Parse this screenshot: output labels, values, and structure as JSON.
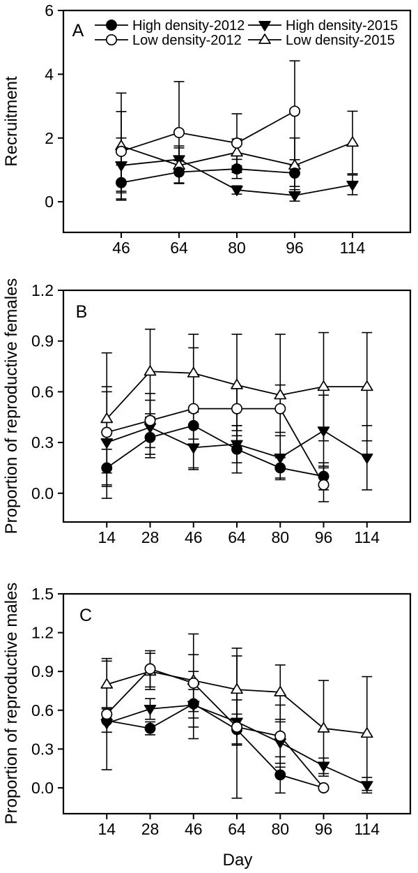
{
  "figure": {
    "xlabel": "Day",
    "background": "#ffffff",
    "ink": "#000000",
    "legend": [
      {
        "label": "High density-2012",
        "marker": "circle-filled"
      },
      {
        "label": "Low density-2012",
        "marker": "circle-open"
      },
      {
        "label": "High density-2015",
        "marker": "triangle-down-filled"
      },
      {
        "label": "Low density-2015",
        "marker": "triangle-up-open"
      }
    ]
  },
  "chart_data": [
    {
      "type": "line",
      "panel_label": "A",
      "ylabel": "Recruitment",
      "categories": [
        "46",
        "64",
        "80",
        "96",
        "114"
      ],
      "ylim": [
        -0.96,
        6.0
      ],
      "yticks": [
        0,
        2,
        4,
        6
      ],
      "ytick_labels": [
        "0",
        "2",
        "4",
        "6"
      ],
      "grid": false,
      "legend_position": "top-left-inside",
      "series": [
        {
          "name": "High density-2012",
          "marker": "circle-filled",
          "values": [
            0.6,
            0.93,
            1.03,
            0.9,
            null
          ],
          "err_lo": [
            0.05,
            0.59,
            0.73,
            0.48,
            null
          ],
          "err_hi": [
            1.15,
            1.29,
            1.33,
            1.32,
            null
          ]
        },
        {
          "name": "Low density-2012",
          "marker": "circle-open",
          "values": [
            1.58,
            2.17,
            1.84,
            2.84,
            null
          ],
          "err_lo": [
            0.33,
            0.57,
            0.92,
            1.14,
            null
          ],
          "err_hi": [
            2.83,
            3.77,
            2.76,
            4.42,
            null
          ]
        },
        {
          "name": "High density-2015",
          "marker": "triangle-down-filled",
          "values": [
            1.14,
            1.33,
            0.37,
            0.2,
            0.53
          ],
          "err_lo": [
            0.28,
            0.91,
            0.24,
            0.02,
            0.22
          ],
          "err_hi": [
            2.0,
            1.75,
            0.5,
            0.38,
            0.84
          ]
        },
        {
          "name": "Low density-2015",
          "marker": "triangle-up-open",
          "values": [
            1.75,
            1.14,
            1.55,
            1.14,
            1.86
          ],
          "err_lo": [
            0.09,
            0.59,
            1.13,
            0.28,
            0.88
          ],
          "err_hi": [
            3.41,
            1.69,
            1.97,
            2.0,
            2.84
          ]
        }
      ]
    },
    {
      "type": "line",
      "panel_label": "B",
      "ylabel": "Proportion of reproductive females",
      "categories": [
        "14",
        "28",
        "46",
        "64",
        "80",
        "96",
        "114"
      ],
      "ylim": [
        -0.17,
        1.2
      ],
      "yticks": [
        0.0,
        0.3,
        0.6,
        0.9,
        1.2
      ],
      "ytick_labels": [
        "0.0",
        "0.3",
        "0.6",
        "0.9",
        "1.2"
      ],
      "grid": false,
      "legend_position": "none",
      "series": [
        {
          "name": "High density-2012",
          "marker": "circle-filled",
          "values": [
            0.15,
            0.33,
            0.4,
            0.26,
            0.15,
            0.1,
            null
          ],
          "err_lo": [
            0.04,
            0.21,
            0.32,
            0.12,
            0.09,
            0.02,
            null
          ],
          "err_hi": [
            0.26,
            0.45,
            0.48,
            0.4,
            0.21,
            0.18,
            null
          ]
        },
        {
          "name": "Low density-2012",
          "marker": "circle-open",
          "values": [
            0.36,
            0.43,
            0.5,
            0.5,
            0.5,
            0.05,
            null
          ],
          "err_lo": [
            0.12,
            0.27,
            0.14,
            0.37,
            0.36,
            -0.05,
            null
          ],
          "err_hi": [
            0.6,
            0.59,
            0.86,
            0.63,
            0.64,
            0.15,
            null
          ]
        },
        {
          "name": "High density-2015",
          "marker": "triangle-down-filled",
          "values": [
            0.3,
            0.39,
            0.27,
            0.29,
            0.21,
            0.37,
            0.21
          ],
          "err_lo": [
            -0.03,
            0.23,
            0.15,
            0.18,
            0.08,
            0.16,
            0.02
          ],
          "err_hi": [
            0.63,
            0.55,
            0.39,
            0.4,
            0.34,
            0.58,
            0.4
          ]
        },
        {
          "name": "Low density-2015",
          "marker": "triangle-up-open",
          "values": [
            0.44,
            0.72,
            0.71,
            0.64,
            0.58,
            0.63,
            0.63
          ],
          "err_lo": [
            0.05,
            0.47,
            0.48,
            0.34,
            0.22,
            0.31,
            0.31
          ],
          "err_hi": [
            0.83,
            0.97,
            0.94,
            0.94,
            0.94,
            0.95,
            0.95
          ]
        }
      ]
    },
    {
      "type": "line",
      "panel_label": "C",
      "ylabel": "Proportion of reproductive males",
      "categories": [
        "14",
        "28",
        "46",
        "64",
        "80",
        "96",
        "114"
      ],
      "ylim": [
        -0.2,
        1.5
      ],
      "yticks": [
        0.0,
        0.3,
        0.6,
        0.9,
        1.2,
        1.5
      ],
      "ytick_labels": [
        "0.0",
        "0.3",
        "0.6",
        "0.9",
        "1.2",
        "1.5"
      ],
      "grid": false,
      "legend_position": "none",
      "series": [
        {
          "name": "High density-2012",
          "marker": "circle-filled",
          "values": [
            0.52,
            0.46,
            0.65,
            0.45,
            0.1,
            0.0,
            null
          ],
          "err_lo": [
            0.43,
            0.41,
            0.54,
            0.33,
            -0.04,
            null,
            null
          ],
          "err_hi": [
            0.61,
            0.51,
            0.76,
            0.57,
            0.24,
            null,
            null
          ]
        },
        {
          "name": "Low density-2012",
          "marker": "circle-open",
          "values": [
            0.57,
            0.92,
            0.81,
            0.47,
            0.4,
            0.0,
            null
          ],
          "err_lo": [
            0.14,
            0.78,
            0.59,
            -0.08,
            0.16,
            null,
            null
          ],
          "err_hi": [
            1.0,
            1.06,
            1.03,
            1.02,
            0.64,
            null,
            null
          ]
        },
        {
          "name": "High density-2015",
          "marker": "triangle-down-filled",
          "values": [
            0.5,
            0.61,
            0.64,
            0.51,
            0.35,
            0.17,
            0.02
          ],
          "err_lo": [
            0.43,
            0.53,
            0.38,
            0.34,
            0.19,
            0.11,
            -0.04
          ],
          "err_hi": [
            0.57,
            0.69,
            0.9,
            0.68,
            0.51,
            0.23,
            0.08
          ]
        },
        {
          "name": "Low density-2015",
          "marker": "triangle-up-open",
          "values": [
            0.8,
            0.9,
            0.83,
            0.76,
            0.74,
            0.46,
            0.42
          ],
          "err_lo": [
            0.62,
            0.76,
            0.47,
            0.44,
            0.53,
            0.09,
            -0.02
          ],
          "err_hi": [
            0.98,
            1.04,
            1.19,
            1.08,
            0.95,
            0.83,
            0.86
          ]
        }
      ]
    }
  ]
}
